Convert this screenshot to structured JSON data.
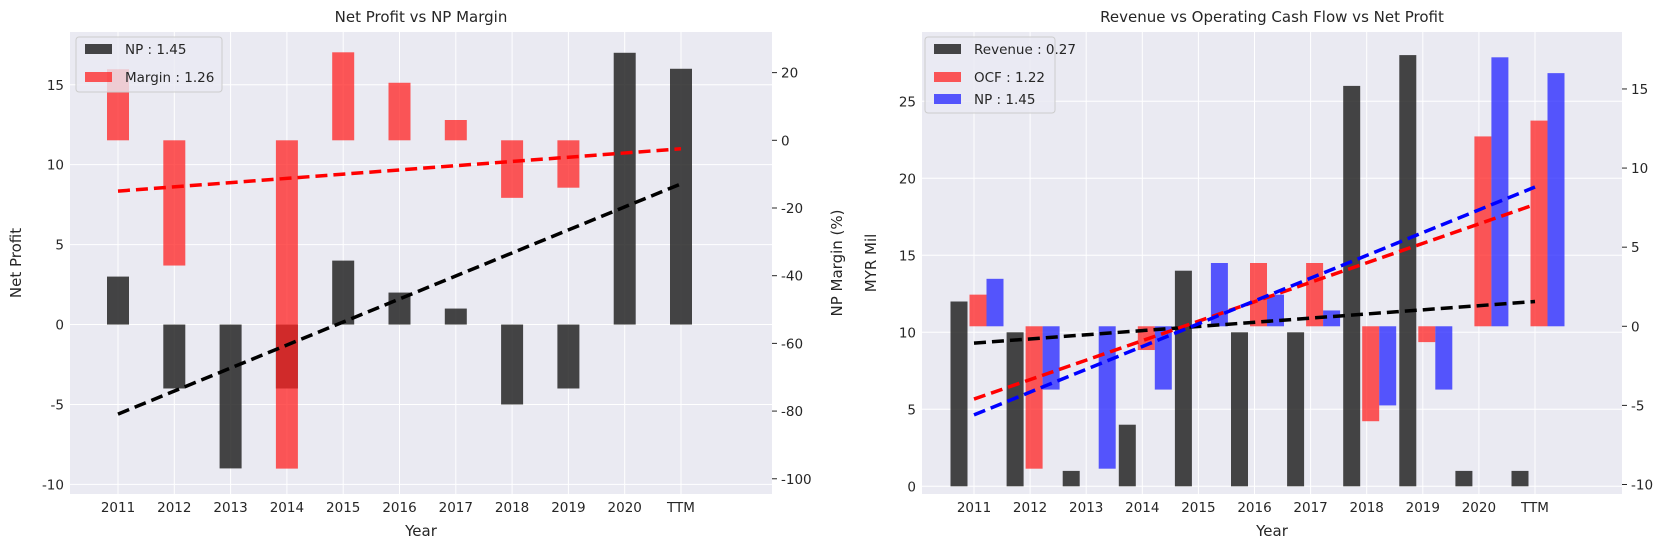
{
  "colors": {
    "background": "#eaeaf2",
    "grid": "#ffffff",
    "np_bar": "#262626",
    "margin_bar": "#ff2222",
    "ocf_bar": "#ff2222",
    "np_blue_bar": "#2222ff",
    "trend_black": "#000000",
    "trend_red": "#ff0000",
    "trend_blue": "#0000ff"
  },
  "chart_data": [
    {
      "type": "bar",
      "title": "Net Profit vs NP Margin",
      "xlabel": "Year",
      "ylabel": "Net Profit",
      "ylabel_right": "NP Margin (%)",
      "categories": [
        "2011",
        "2012",
        "2013",
        "2014",
        "2015",
        "2016",
        "2017",
        "2018",
        "2019",
        "2020",
        "TTM"
      ],
      "ylim": [
        -10.6,
        18.3
      ],
      "yticks": [
        -10,
        -5,
        0,
        5,
        10,
        15
      ],
      "ylim_right": [
        -104.5,
        32
      ],
      "yticks_right": [
        -100,
        -80,
        -60,
        -40,
        -20,
        0,
        20
      ],
      "legend_position": "top-left",
      "grid": true,
      "series": [
        {
          "name": "NP : 1.45",
          "axis": "left",
          "color_key": "np_bar",
          "values": [
            3,
            -4,
            -9,
            -4,
            4,
            2,
            1,
            -5,
            -4,
            17,
            16
          ]
        },
        {
          "name": "Margin : 1.26",
          "axis": "right",
          "color_key": "margin_bar",
          "values": [
            21,
            -37,
            null,
            -97,
            26,
            17,
            6,
            -17,
            -14,
            null,
            null
          ]
        }
      ],
      "trendlines": [
        {
          "axis": "left",
          "color_key": "trend_black",
          "from": [
            "2011",
            -5.6
          ],
          "to": [
            "TTM",
            8.8
          ]
        },
        {
          "axis": "right",
          "color_key": "trend_red",
          "from": [
            "2011",
            -15
          ],
          "to": [
            "TTM",
            -2.5
          ]
        }
      ]
    },
    {
      "type": "bar",
      "title": "Revenue vs Operating Cash Flow vs Net Profit",
      "xlabel": "Year",
      "ylabel": "MYR Mil",
      "categories": [
        "2011",
        "2012",
        "2013",
        "2014",
        "2015",
        "2016",
        "2017",
        "2018",
        "2019",
        "2020",
        "TTM"
      ],
      "ylim": [
        -0.5,
        29.5
      ],
      "yticks": [
        0,
        5,
        10,
        15,
        20,
        25
      ],
      "ylim_right": [
        -10.6,
        18.6
      ],
      "yticks_right": [
        -10,
        -5,
        0,
        5,
        10,
        15
      ],
      "legend_position": "top-left",
      "grid": true,
      "series": [
        {
          "name": "Revenue : 0.27",
          "axis": "left",
          "color_key": "np_bar",
          "values": [
            12,
            10,
            1,
            4,
            14,
            10,
            10,
            26,
            28,
            1,
            1
          ]
        },
        {
          "name": "OCF : 1.22",
          "axis": "right",
          "color_key": "ocf_bar",
          "values": [
            2,
            -9,
            null,
            -1.5,
            null,
            4,
            4,
            -6,
            -1,
            12,
            13
          ]
        },
        {
          "name": "NP : 1.45",
          "axis": "right",
          "color_key": "np_blue_bar",
          "values": [
            3,
            -4,
            -9,
            -4,
            4,
            2,
            1,
            -5,
            -4,
            17,
            16
          ]
        }
      ],
      "trendlines": [
        {
          "axis": "left",
          "color_key": "trend_black",
          "from": [
            "2011",
            9.3
          ],
          "to": [
            "TTM",
            12
          ]
        },
        {
          "axis": "right",
          "color_key": "trend_red",
          "from": [
            "2011",
            -4.6
          ],
          "to": [
            "TTM",
            7.7
          ]
        },
        {
          "axis": "right",
          "color_key": "trend_blue",
          "from": [
            "2011",
            -5.6
          ],
          "to": [
            "TTM",
            8.8
          ]
        }
      ]
    }
  ]
}
